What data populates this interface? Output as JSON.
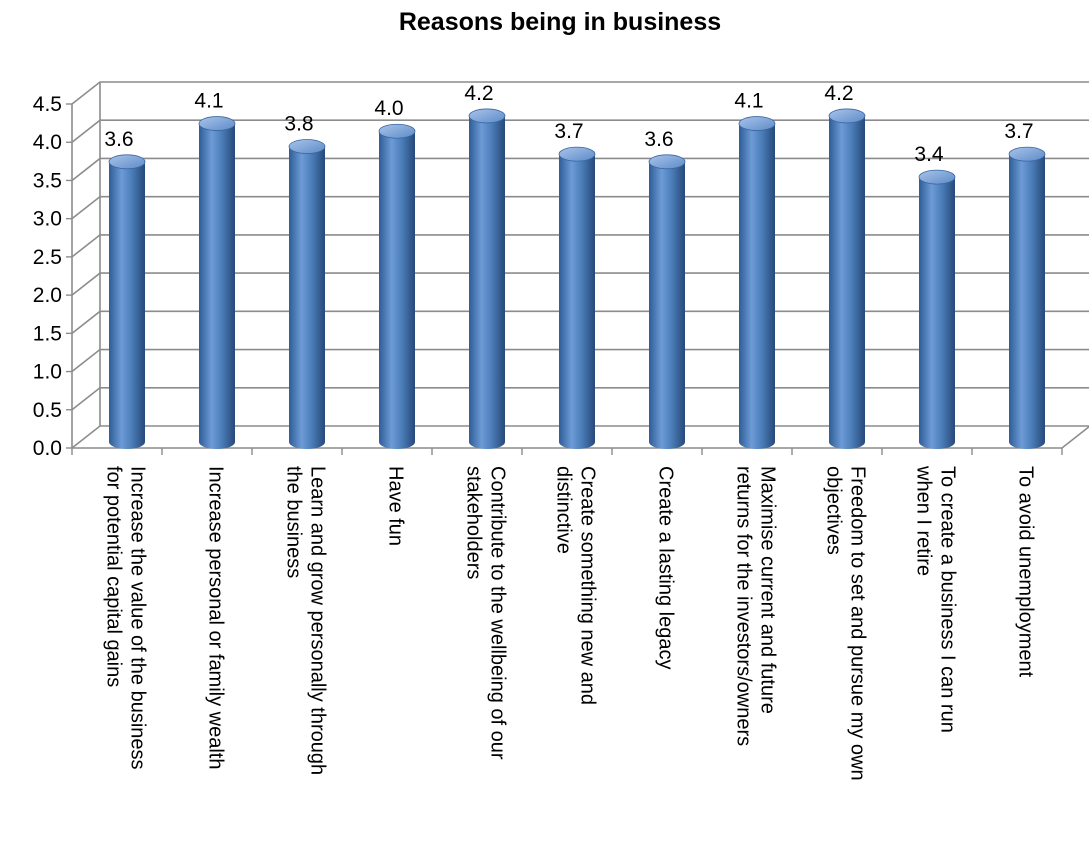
{
  "chart_data": {
    "type": "bar",
    "title": "Reasons being in business",
    "xlabel": "",
    "ylabel": "",
    "ylim": [
      0,
      4.5
    ],
    "yticks": [
      "0.0",
      "0.5",
      "1.0",
      "1.5",
      "2.0",
      "2.5",
      "3.0",
      "3.5",
      "4.0",
      "4.5"
    ],
    "grid": true,
    "style": "3d-cylinder",
    "bar_color": "#4F81BD",
    "categories": [
      [
        "Increase the value of the business",
        "for potential capital gains"
      ],
      [
        "Increase personal or family wealth"
      ],
      [
        "Learn and grow personally through",
        "the business"
      ],
      [
        "Have fun"
      ],
      [
        "Contribute to the wellbeing of our",
        "stakeholders"
      ],
      [
        "Create something new and",
        "distinctive"
      ],
      [
        "Create a lasting legacy"
      ],
      [
        "Maximise current and future",
        "returns for the investors/owners"
      ],
      [
        "Freedom to set and pursue my own",
        "objectives"
      ],
      [
        "To create a business I can run",
        "when I retire"
      ],
      [
        "To avoid unemployment"
      ]
    ],
    "values": [
      3.6,
      4.1,
      3.8,
      4.0,
      4.2,
      3.7,
      3.6,
      4.1,
      4.2,
      3.4,
      3.7
    ],
    "data_labels": [
      "3.6",
      "4.1",
      "3.8",
      "4.0",
      "4.2",
      "3.7",
      "3.6",
      "4.1",
      "4.2",
      "3.4",
      "3.7"
    ]
  }
}
